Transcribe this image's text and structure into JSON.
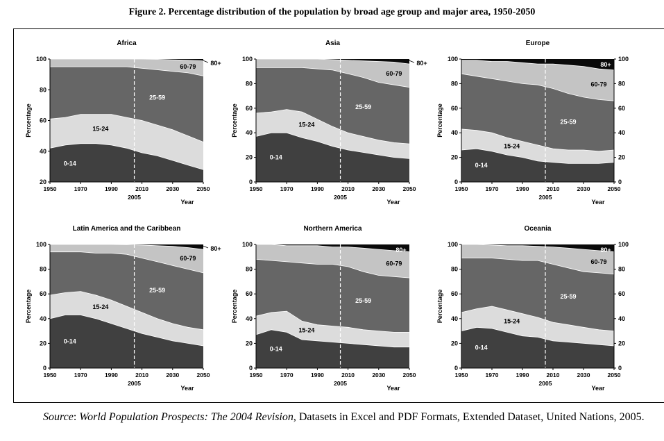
{
  "figure_title": "Figure 2. Percentage distribution of the population by broad age group and major area, 1950-2050",
  "source": {
    "label": "Source",
    "colon": ": ",
    "publication": "World Population Prospects: The 2004 Revision",
    "rest": ", Datasets in Excel and PDF Formats, Extended Dataset, United Nations, 2005."
  },
  "colors": {
    "band_0_14": "#404040",
    "band_15_24": "#dcdcdc",
    "band_25_59": "#666666",
    "band_60_79": "#c4c4c4",
    "band_80_plus": "#0a0a0a",
    "divider": "#ffffff"
  },
  "chart_data": [
    {
      "type": "area",
      "title": "Africa",
      "xlabel": "Year",
      "ylabel": "Percentage",
      "x": [
        1950,
        1960,
        1970,
        1980,
        1990,
        2000,
        2010,
        2020,
        2030,
        2040,
        2050
      ],
      "x_ticks": [
        "1950",
        "1970",
        "1990",
        "2010",
        "2030",
        "2050"
      ],
      "x_marker": {
        "value": 2005,
        "label": "2005",
        "style": "dashed"
      },
      "ylim": [
        20,
        100
      ],
      "y_ticks": [
        "20",
        "40",
        "60",
        "80",
        "100"
      ],
      "right_axis": false,
      "cumulative": {
        "0-14": [
          42,
          44,
          45,
          45,
          44,
          42,
          39,
          37,
          34,
          31,
          28
        ],
        "15-24": [
          61,
          62,
          64,
          64,
          64,
          62,
          60,
          57,
          54,
          50,
          46
        ],
        "25-59": [
          95,
          95,
          95,
          95,
          95,
          95,
          94,
          93,
          92,
          91,
          89
        ],
        "60-79": [
          100,
          100,
          100,
          100,
          100,
          100,
          100,
          99.8,
          99.5,
          99.2,
          98.8
        ],
        "80+": [
          100,
          100,
          100,
          100,
          100,
          100,
          100,
          100,
          100,
          100,
          100
        ]
      },
      "band_labels": {
        "0-14": "0-14",
        "15-24": "15-24",
        "25-59": "25-59",
        "60-79": "60-79",
        "80+": "80+"
      }
    },
    {
      "type": "area",
      "title": "Asia",
      "xlabel": "Year",
      "ylabel": "Percentage",
      "x": [
        1950,
        1960,
        1970,
        1980,
        1990,
        2000,
        2010,
        2020,
        2030,
        2040,
        2050
      ],
      "x_ticks": [
        "1950",
        "1970",
        "1990",
        "2010",
        "2030",
        "2050"
      ],
      "x_marker": {
        "value": 2005,
        "label": "2005",
        "style": "dashed"
      },
      "ylim": [
        0,
        100
      ],
      "y_ticks": [
        "0",
        "20",
        "40",
        "60",
        "80",
        "100"
      ],
      "right_axis": false,
      "cumulative": {
        "0-14": [
          37,
          40,
          40,
          36,
          33,
          29,
          26,
          24,
          22,
          20,
          19
        ],
        "15-24": [
          56,
          57,
          59,
          57,
          51,
          45,
          40,
          37,
          34,
          32,
          31
        ],
        "25-59": [
          93,
          93,
          93,
          93,
          92,
          91,
          88,
          85,
          81,
          79,
          77
        ],
        "60-79": [
          100,
          100,
          100,
          100,
          100,
          99.5,
          99,
          98.5,
          98,
          97.5,
          96
        ],
        "80+": [
          100,
          100,
          100,
          100,
          100,
          100,
          100,
          100,
          100,
          100,
          100
        ]
      },
      "band_labels": {
        "0-14": "0-14",
        "15-24": "15-24",
        "25-59": "25-59",
        "60-79": "60-79",
        "80+": "80+"
      }
    },
    {
      "type": "area",
      "title": "Europe",
      "xlabel": "Year",
      "ylabel": "Percentage",
      "x": [
        1950,
        1960,
        1970,
        1980,
        1990,
        2000,
        2010,
        2020,
        2030,
        2040,
        2050
      ],
      "x_ticks": [
        "1950",
        "1970",
        "1990",
        "2010",
        "2030",
        "2050"
      ],
      "x_marker": {
        "value": 2005,
        "label": "2005",
        "style": "dashed"
      },
      "ylim": [
        0,
        100
      ],
      "y_ticks": [
        "0",
        "20",
        "40",
        "60",
        "80",
        "100"
      ],
      "right_axis": true,
      "cumulative": {
        "0-14": [
          26,
          27,
          25,
          22,
          20,
          17,
          16,
          15,
          15,
          15,
          16
        ],
        "15-24": [
          43,
          42,
          40,
          36,
          33,
          30,
          27,
          26,
          26,
          25,
          26
        ],
        "25-59": [
          88,
          86,
          84,
          82,
          80,
          79,
          76,
          72,
          69,
          67,
          66
        ],
        "60-79": [
          99,
          99,
          98,
          98,
          97,
          96,
          96,
          95,
          94,
          92,
          91
        ],
        "80+": [
          100,
          100,
          100,
          100,
          100,
          100,
          100,
          100,
          100,
          100,
          100
        ]
      },
      "band_labels": {
        "0-14": "0-14",
        "15-24": "15-24",
        "25-59": "25-59",
        "60-79": "60-79",
        "80+": "80+"
      }
    },
    {
      "type": "area",
      "title": "Latin America and the Caribbean",
      "xlabel": "Year",
      "ylabel": "Percentage",
      "x": [
        1950,
        1960,
        1970,
        1980,
        1990,
        2000,
        2010,
        2020,
        2030,
        2040,
        2050
      ],
      "x_ticks": [
        "1950",
        "1970",
        "1990",
        "2010",
        "2030",
        "2050"
      ],
      "x_marker": {
        "value": 2005,
        "label": "2005",
        "style": "dashed"
      },
      "ylim": [
        0,
        100
      ],
      "y_ticks": [
        "0",
        "20",
        "40",
        "60",
        "80",
        "100"
      ],
      "right_axis": false,
      "cumulative": {
        "0-14": [
          40,
          43,
          43,
          40,
          36,
          32,
          28,
          25,
          22,
          20,
          18
        ],
        "15-24": [
          59,
          61,
          62,
          59,
          55,
          50,
          45,
          40,
          36,
          33,
          31
        ],
        "25-59": [
          94,
          94,
          94,
          93,
          93,
          92,
          89,
          86,
          83,
          80,
          77
        ],
        "60-79": [
          100,
          100,
          100,
          100,
          100,
          99.8,
          99.5,
          99,
          98.5,
          97.5,
          96
        ],
        "80+": [
          100,
          100,
          100,
          100,
          100,
          100,
          100,
          100,
          100,
          100,
          100
        ]
      },
      "band_labels": {
        "0-14": "0-14",
        "15-24": "15-24",
        "25-59": "25-59",
        "60-79": "60-79",
        "80+": "80+"
      }
    },
    {
      "type": "area",
      "title": "Northern America",
      "xlabel": "Year",
      "ylabel": "Percentage",
      "x": [
        1950,
        1960,
        1970,
        1980,
        1990,
        2000,
        2010,
        2020,
        2030,
        2040,
        2050
      ],
      "x_ticks": [
        "1950",
        "1970",
        "1990",
        "2010",
        "2030",
        "2050"
      ],
      "x_marker": {
        "value": 2005,
        "label": "2005",
        "style": "dashed"
      },
      "ylim": [
        0,
        100
      ],
      "y_ticks": [
        "0",
        "20",
        "40",
        "60",
        "80",
        "100"
      ],
      "right_axis": false,
      "cumulative": {
        "0-14": [
          27,
          31,
          29,
          23,
          22,
          21,
          20,
          19,
          18,
          17,
          17
        ],
        "15-24": [
          42,
          45,
          46,
          38,
          35,
          34,
          33,
          31,
          30,
          29,
          29
        ],
        "25-59": [
          88,
          87,
          86,
          85,
          84,
          84,
          82,
          78,
          75,
          74,
          73
        ],
        "60-79": [
          100,
          100,
          99,
          99,
          99,
          98,
          98,
          97,
          96,
          95,
          94
        ],
        "80+": [
          100,
          100,
          100,
          100,
          100,
          100,
          100,
          100,
          100,
          100,
          100
        ]
      },
      "band_labels": {
        "0-14": "0-14",
        "15-24": "15-24",
        "25-59": "25-59",
        "60-79": "60-79",
        "80+": "80+"
      }
    },
    {
      "type": "area",
      "title": "Oceania",
      "xlabel": "Year",
      "ylabel": "Percentage",
      "x": [
        1950,
        1960,
        1970,
        1980,
        1990,
        2000,
        2010,
        2020,
        2030,
        2040,
        2050
      ],
      "x_ticks": [
        "1950",
        "1970",
        "1990",
        "2010",
        "2030",
        "2050"
      ],
      "x_marker": {
        "value": 2005,
        "label": "2005",
        "style": "dashed"
      },
      "ylim": [
        0,
        100
      ],
      "y_ticks": [
        "0",
        "20",
        "40",
        "60",
        "80",
        "100"
      ],
      "right_axis": true,
      "cumulative": {
        "0-14": [
          30,
          33,
          32,
          29,
          26,
          25,
          22,
          21,
          20,
          19,
          18
        ],
        "15-24": [
          45,
          48,
          50,
          47,
          44,
          41,
          37,
          35,
          33,
          31,
          30
        ],
        "25-59": [
          89,
          89,
          89,
          88,
          87,
          87,
          84,
          81,
          78,
          77,
          76
        ],
        "60-79": [
          100,
          100,
          99.5,
          99,
          99,
          98.5,
          98,
          97,
          96,
          95,
          94
        ],
        "80+": [
          100,
          100,
          100,
          100,
          100,
          100,
          100,
          100,
          100,
          100,
          100
        ]
      },
      "band_labels": {
        "0-14": "0-14",
        "15-24": "15-24",
        "25-59": "25-59",
        "60-79": "60-79",
        "80+": "80+"
      }
    }
  ]
}
